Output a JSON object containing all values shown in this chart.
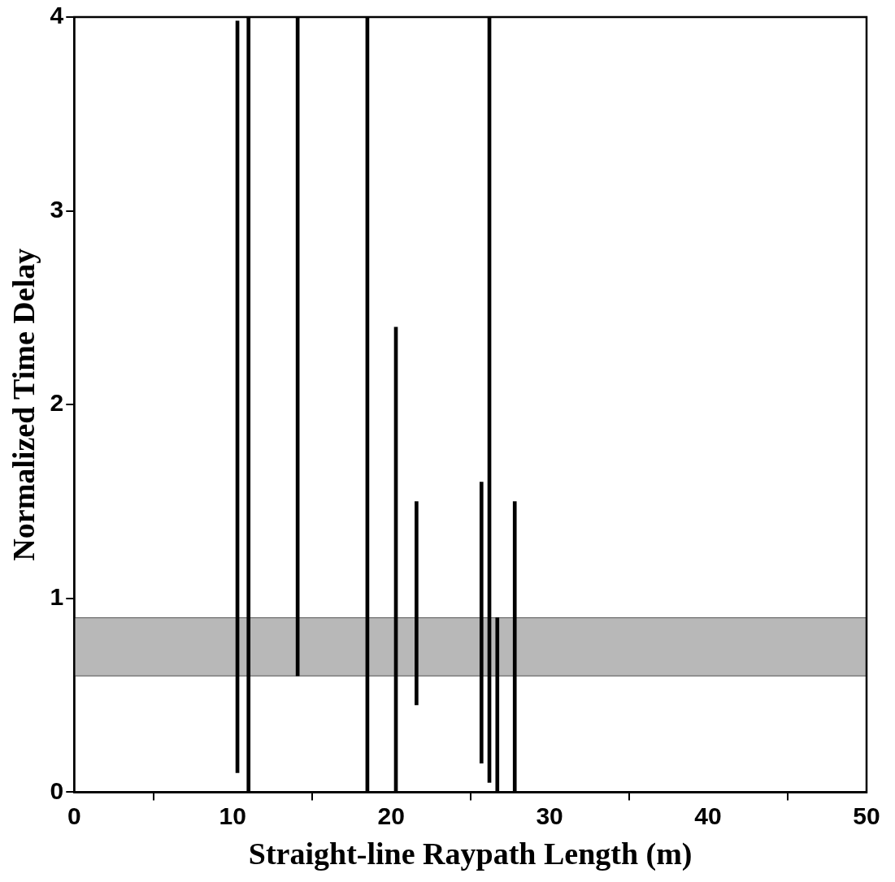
{
  "chart_data": {
    "type": "bar",
    "xlabel": "Straight-line Raypath Length (m)",
    "ylabel": "Normalized Time Delay",
    "x": [
      10.3,
      11.0,
      14.1,
      18.5,
      20.3,
      21.6,
      25.7,
      26.2,
      26.7,
      27.8
    ],
    "base": [
      0.1,
      0,
      0.6,
      0,
      0,
      0.45,
      0.15,
      0.05,
      0,
      0
    ],
    "values": [
      3.88,
      4,
      3.4,
      4,
      2.4,
      1.05,
      1.45,
      3.95,
      0.9,
      1.5
    ],
    "color": "#000000",
    "xlim": [
      0,
      50
    ],
    "xticks": [
      0,
      10,
      20,
      30,
      40,
      50
    ],
    "ylim": [
      0,
      4
    ],
    "yticks": [
      0,
      1,
      2,
      3,
      4
    ],
    "bands": [
      {
        "axis": "y",
        "from": 0.6,
        "to": 0.9,
        "color": "#b8b8b8"
      }
    ],
    "grid": false,
    "legend": false
  }
}
